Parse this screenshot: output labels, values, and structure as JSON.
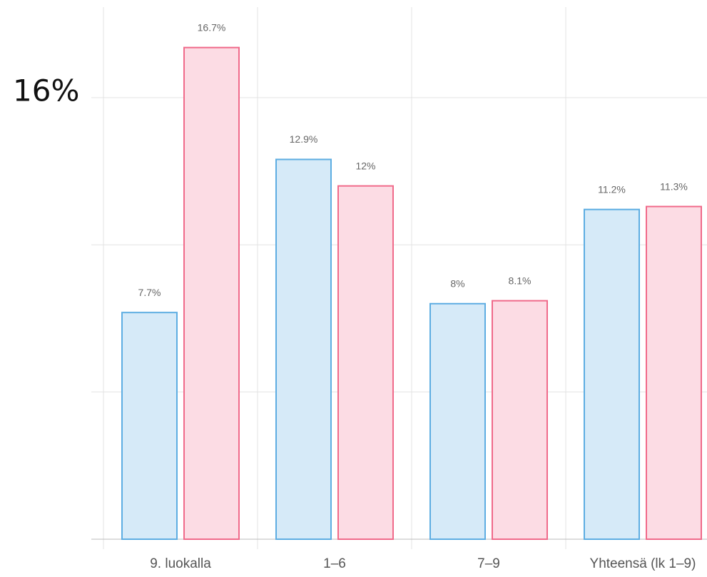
{
  "chart_data": {
    "type": "bar",
    "annotation": "16%",
    "categories": [
      "9. luokalla",
      "1–6",
      "7–9",
      "Yhteensä (lk 1–9)"
    ],
    "series": [
      {
        "color": "#5dade2",
        "fill": "#d6eaf8",
        "values": [
          7.7,
          12.9,
          8,
          11.2
        ],
        "value_labels": [
          "7.7%",
          "12.9%",
          "8%",
          "11.2%"
        ]
      },
      {
        "color": "#f06a8a",
        "fill": "#fcdce4",
        "values": [
          16.7,
          12,
          8.1,
          11.3
        ],
        "value_labels": [
          "16.7%",
          "12%",
          "8.1%",
          "11.3%"
        ]
      }
    ],
    "ylim": [
      0,
      18
    ],
    "yticks": [
      0,
      5,
      10,
      15
    ],
    "grid": true
  }
}
